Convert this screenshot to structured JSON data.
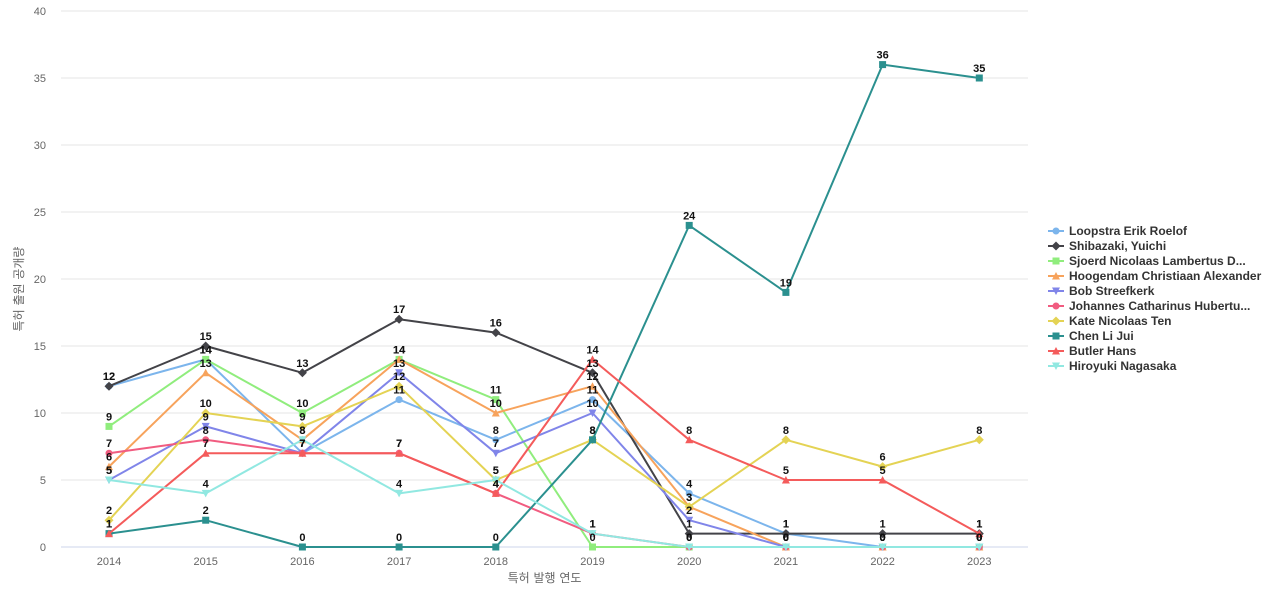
{
  "chart_data": {
    "type": "line",
    "xlabel": "특허 발행 연도",
    "ylabel": "특허 출원 공개량",
    "ylim": [
      0,
      40
    ],
    "yticks": [
      0,
      5,
      10,
      15,
      20,
      25,
      30,
      35,
      40
    ],
    "grid": true,
    "legend_position": "right",
    "x": [
      "2014",
      "2015",
      "2016",
      "2017",
      "2018",
      "2019",
      "2020",
      "2021",
      "2022",
      "2023"
    ],
    "series": [
      {
        "name": "Loopstra Erik Roelof",
        "color": "#7cb5ec",
        "marker": "circle",
        "values": [
          12,
          14,
          7,
          11,
          8,
          11,
          4,
          1,
          0,
          0
        ]
      },
      {
        "name": "Shibazaki, Yuichi",
        "color": "#434348",
        "marker": "diamond",
        "values": [
          12,
          15,
          13,
          17,
          16,
          13,
          1,
          1,
          1,
          1
        ]
      },
      {
        "name": "Sjoerd Nicolaas Lambertus D...",
        "color": "#90ed7d",
        "marker": "square",
        "values": [
          9,
          14,
          10,
          14,
          11,
          0,
          0,
          0,
          0,
          0
        ]
      },
      {
        "name": "Hoogendam Christiaan Alexander",
        "color": "#f7a35c",
        "marker": "triangle",
        "values": [
          6,
          13,
          8,
          14,
          10,
          12,
          3,
          0,
          0,
          0
        ]
      },
      {
        "name": "Bob Streefkerk",
        "color": "#8085e9",
        "marker": "triangle-down",
        "values": [
          5,
          9,
          7,
          13,
          7,
          10,
          2,
          0,
          0,
          0
        ]
      },
      {
        "name": "Johannes Catharinus Hubertu...",
        "color": "#f15c80",
        "marker": "circle",
        "values": [
          7,
          8,
          7,
          7,
          4,
          1,
          0,
          0,
          0,
          0
        ]
      },
      {
        "name": "Kate Nicolaas Ten",
        "color": "#e4d354",
        "marker": "diamond",
        "values": [
          2,
          10,
          9,
          12,
          5,
          8,
          3,
          8,
          6,
          8
        ]
      },
      {
        "name": "Chen Li Jui",
        "color": "#2b908f",
        "marker": "square",
        "values": [
          1,
          2,
          0,
          0,
          0,
          8,
          24,
          19,
          36,
          35
        ]
      },
      {
        "name": "Butler Hans",
        "color": "#f45b5b",
        "marker": "triangle",
        "values": [
          1,
          7,
          7,
          7,
          4,
          14,
          8,
          5,
          5,
          1
        ]
      },
      {
        "name": "Hiroyuki Nagasaka",
        "color": "#91e8e1",
        "marker": "triangle-down",
        "values": [
          5,
          4,
          8,
          4,
          5,
          1,
          0,
          0,
          0,
          0
        ]
      }
    ]
  }
}
